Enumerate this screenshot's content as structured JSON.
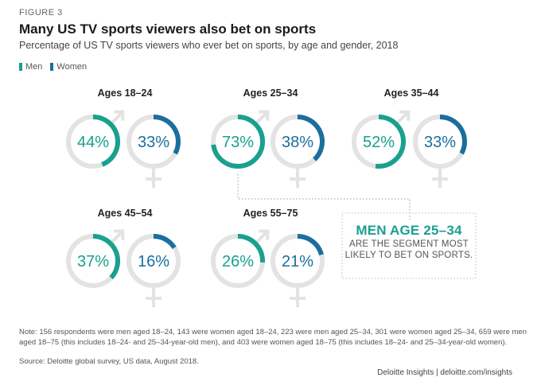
{
  "figure_label": "FIGURE 3",
  "title": "Many US TV sports viewers also bet on sports",
  "subtitle": "Percentage of US TV sports viewers who ever bet on sports, by age and gender, 2018",
  "legend": [
    {
      "label": "Men",
      "color": "#1aa08f"
    },
    {
      "label": "Women",
      "color": "#1a6f9e"
    }
  ],
  "callout": {
    "headline": "MEN AGE 25–34",
    "line1": "ARE THE SEGMENT MOST",
    "line2": "LIKELY TO BET ON SPORTS."
  },
  "note": "Note: 156 respondents were men aged 18–24, 143 were women aged 18–24, 223 were men aged 25–34, 301 were women aged 25–34, 659 were men aged 18–75 (this includes 18–24- and 25–34-year-old men), and 403 were women aged 18–75 (this includes 18–24- and 25–34-year-old women).",
  "source": "Source: Deloitte global survey, US data, August 2018.",
  "brand": "Deloitte Insights | deloitte.com/insights",
  "chart_data": {
    "type": "donut",
    "title": "Many US TV sports viewers also bet on sports",
    "unit": "%",
    "categories": [
      "Ages 18–24",
      "Ages 25–34",
      "Ages 35–44",
      "Ages 45–54",
      "Ages 55–75"
    ],
    "series": [
      {
        "name": "Men",
        "values": [
          44,
          73,
          52,
          37,
          26
        ],
        "color": "#1aa08f"
      },
      {
        "name": "Women",
        "values": [
          33,
          38,
          33,
          16,
          21
        ],
        "color": "#1a6f9e"
      }
    ],
    "labels": {
      "Men": [
        "44%",
        "73%",
        "52%",
        "37%",
        "26%"
      ],
      "Women": [
        "33%",
        "38%",
        "33%",
        "16%",
        "21%"
      ]
    },
    "track_color": "#e3e3e3",
    "ylim": [
      0,
      100
    ]
  }
}
